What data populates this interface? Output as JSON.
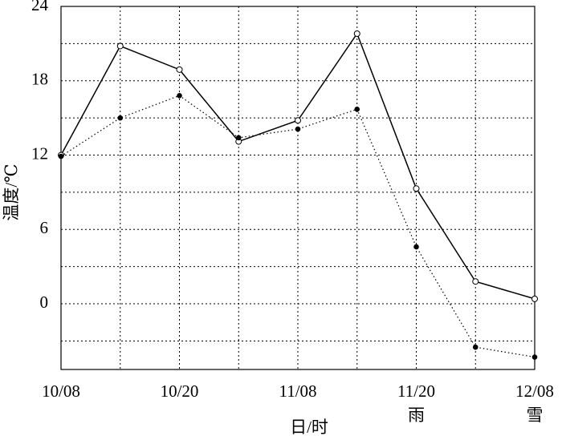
{
  "chart_data": {
    "type": "line",
    "x_label": "日/时",
    "y_label": "温度/℃",
    "categories": [
      "10/08",
      null,
      "10/20",
      null,
      "11/08",
      null,
      "11/20",
      null,
      "12/08"
    ],
    "series": [
      {
        "color": "#000000",
        "line_style": "solid",
        "marker": "open",
        "values": [
          12.0,
          20.8,
          18.9,
          13.1,
          14.8,
          21.8,
          9.3,
          1.8,
          0.4
        ]
      },
      {
        "color": "#000000",
        "line_style": "dotted",
        "marker": "filled",
        "values": [
          11.9,
          15.0,
          16.8,
          13.4,
          14.1,
          15.7,
          4.6,
          -3.5,
          -4.3
        ]
      }
    ],
    "annotations": [
      {
        "text": "雨",
        "x": "11/20"
      },
      {
        "text": "雪",
        "x": "12/08"
      }
    ],
    "ylim": [
      -5.3,
      24
    ],
    "yticks": [
      0,
      6,
      12,
      18,
      24
    ],
    "minor_grid": [
      -3,
      3,
      9,
      15,
      21
    ],
    "grid": true
  }
}
